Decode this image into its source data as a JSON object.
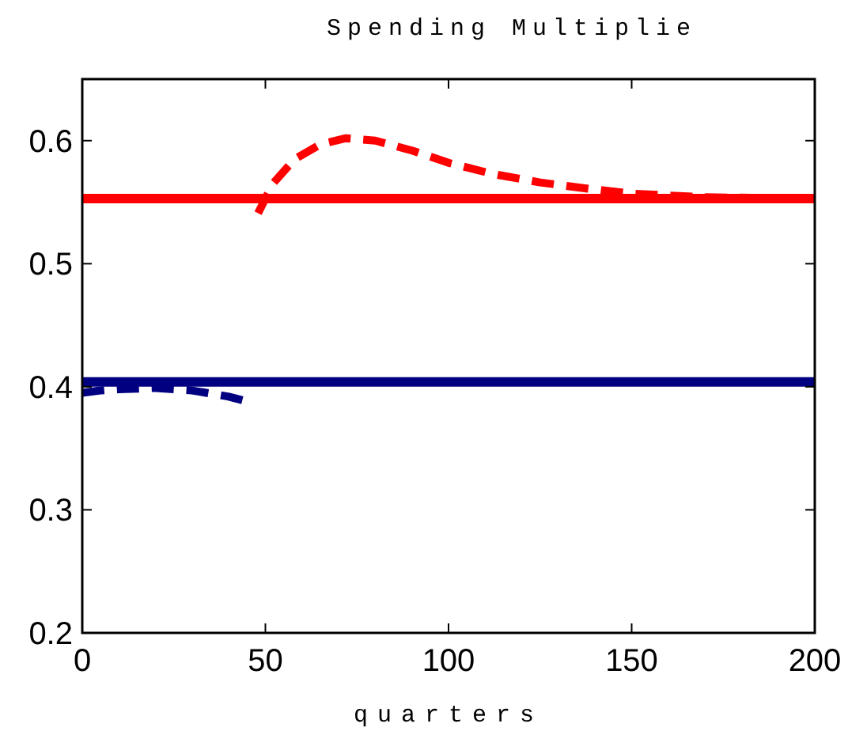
{
  "chart_data": {
    "type": "line",
    "title": "Spending Multiplie",
    "xlabel": "quarters",
    "xlim": [
      0,
      200
    ],
    "xticks": [
      0,
      50,
      100,
      150,
      200
    ],
    "ylim": [
      0.2,
      0.65
    ],
    "yticks": [
      0.2,
      0.3,
      0.4,
      0.5,
      0.6
    ],
    "grid": false,
    "series": [
      {
        "color": "#ff0000",
        "line_style": "solid",
        "x": [
          0,
          200
        ],
        "values": [
          0.553,
          0.553
        ]
      },
      {
        "color": "#000080",
        "line_style": "solid",
        "x": [
          0,
          200
        ],
        "values": [
          0.404,
          0.404
        ]
      },
      {
        "color": "#000080",
        "line_style": "dashed",
        "x": [
          0,
          5,
          10,
          20,
          30,
          40,
          45
        ],
        "values": [
          0.395,
          0.397,
          0.398,
          0.399,
          0.397,
          0.392,
          0.388
        ]
      },
      {
        "color": "#ff0000",
        "line_style": "dashed",
        "x": [
          48,
          52,
          58,
          65,
          72,
          80,
          90,
          100,
          112,
          125,
          138,
          150,
          170,
          200
        ],
        "values": [
          0.541,
          0.565,
          0.585,
          0.597,
          0.602,
          0.6,
          0.592,
          0.582,
          0.573,
          0.566,
          0.561,
          0.557,
          0.554,
          0.553
        ]
      }
    ]
  }
}
